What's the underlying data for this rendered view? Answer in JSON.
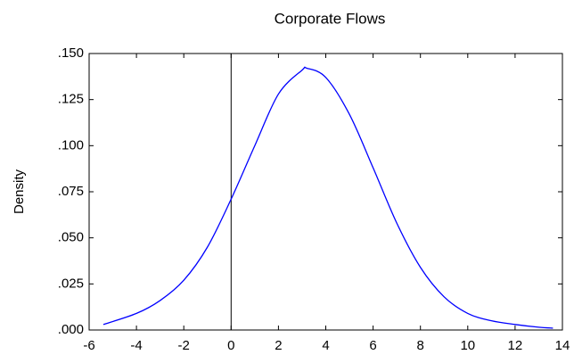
{
  "chart_data": {
    "type": "line",
    "title": "Corporate Flows",
    "ylabel": "Density",
    "x": [
      -5.4,
      -4,
      -3,
      -2,
      -1,
      0,
      1,
      2,
      3,
      3.2,
      4,
      5,
      6,
      7,
      8,
      9,
      10,
      11,
      12,
      13,
      13.6
    ],
    "values": [
      0.003,
      0.009,
      0.016,
      0.027,
      0.045,
      0.071,
      0.1,
      0.128,
      0.141,
      0.142,
      0.137,
      0.117,
      0.088,
      0.058,
      0.034,
      0.018,
      0.009,
      0.005,
      0.003,
      0.0015,
      0.001
    ],
    "color": "#0000ff",
    "xlim": [
      -6,
      14
    ],
    "xticks": [
      -6,
      -4,
      -2,
      0,
      2,
      4,
      6,
      8,
      10,
      12,
      14
    ],
    "ylim": [
      0,
      0.15
    ],
    "yticks": [
      {
        "value": 0,
        "label": ".000"
      },
      {
        "value": 0.025,
        "label": ".025"
      },
      {
        "value": 0.05,
        "label": ".050"
      },
      {
        "value": 0.075,
        "label": ".075"
      },
      {
        "value": 0.1,
        "label": ".100"
      },
      {
        "value": 0.125,
        "label": ".125"
      },
      {
        "value": 0.15,
        "label": ".150"
      }
    ],
    "vline": 0
  }
}
